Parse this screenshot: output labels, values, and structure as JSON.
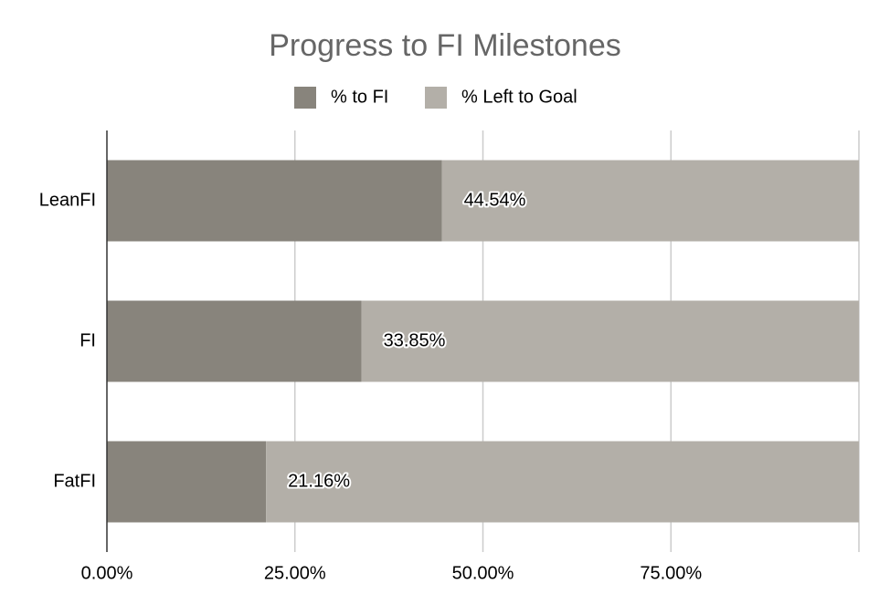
{
  "chart_data": {
    "type": "stacked-bar-horizontal",
    "title": "Progress to FI Milestones",
    "categories": [
      "LeanFI",
      "FI",
      "FatFI"
    ],
    "series": [
      {
        "name": "% to FI",
        "color": "#88847c",
        "values": [
          44.54,
          33.85,
          21.16
        ],
        "value_labels": [
          "44.54%",
          "33.85%",
          "21.16%"
        ]
      },
      {
        "name": "% Left to Goal",
        "color": "#b3afa8",
        "values": [
          55.46,
          66.15,
          78.84
        ]
      }
    ],
    "xlim": [
      0,
      100
    ],
    "xticks": [
      {
        "value": 0,
        "label": "0.00%"
      },
      {
        "value": 25,
        "label": "25.00%"
      },
      {
        "value": 50,
        "label": "50.00%"
      },
      {
        "value": 75,
        "label": "75.00%"
      }
    ],
    "grid": true,
    "legend": "top"
  }
}
